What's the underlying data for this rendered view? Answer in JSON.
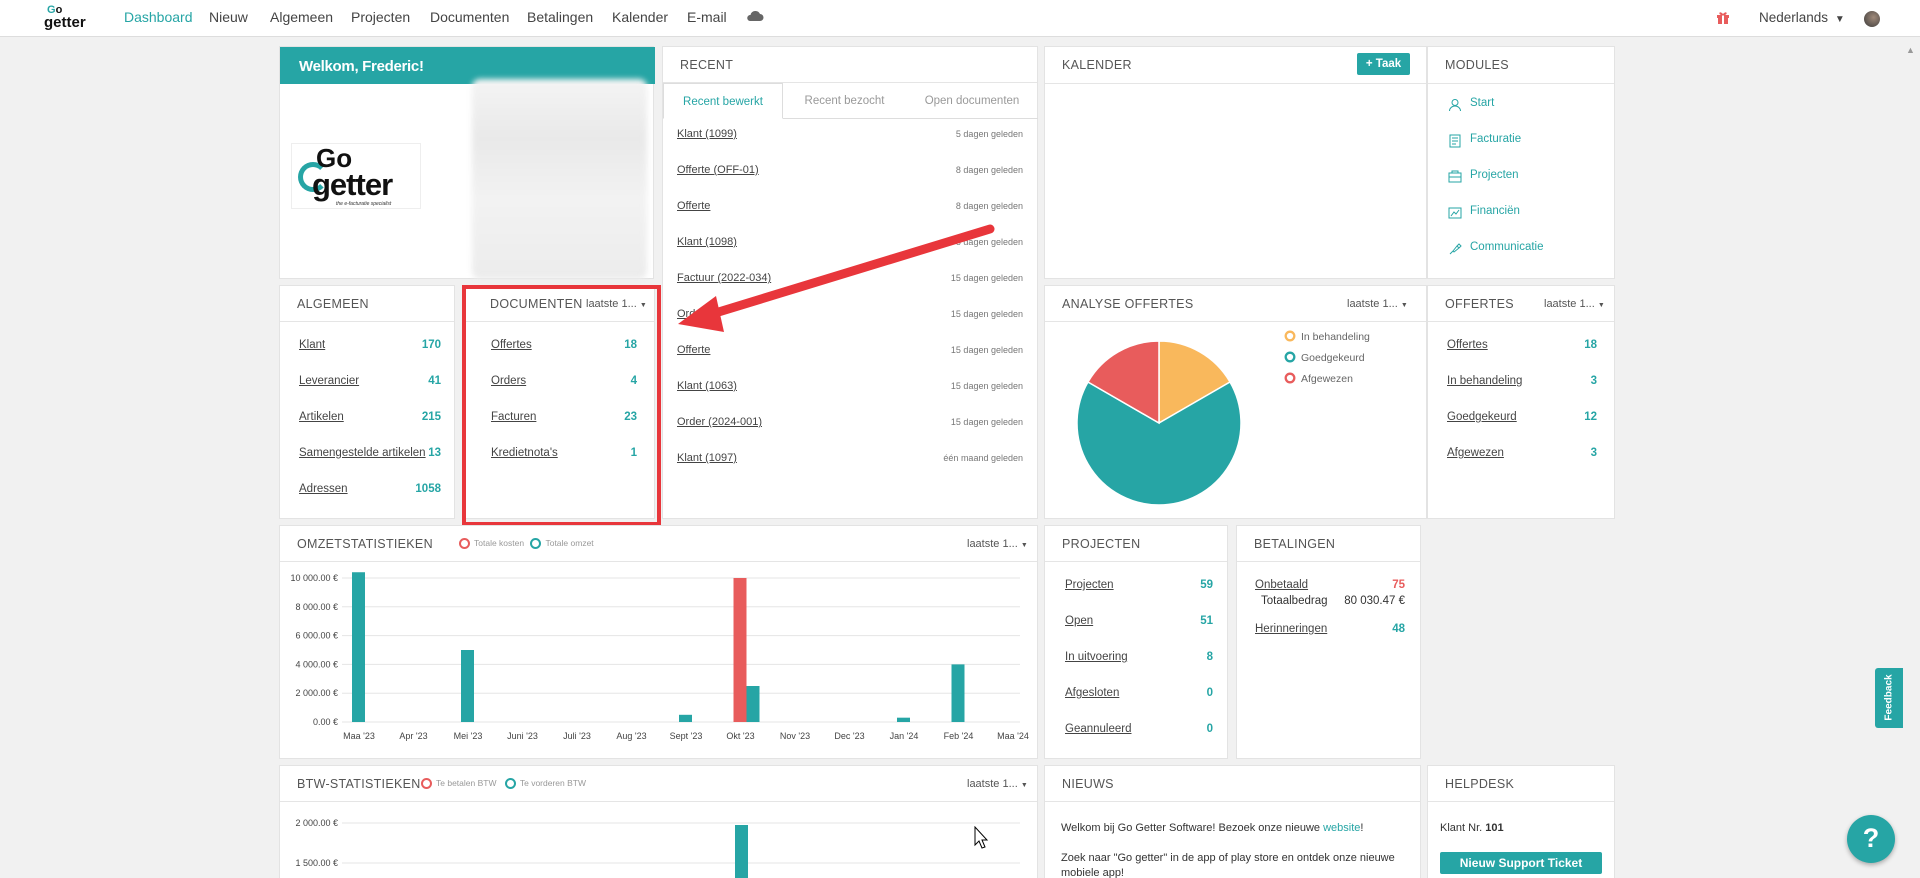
{
  "nav": {
    "items": [
      "Dashboard",
      "Nieuw",
      "Algemeen",
      "Projecten",
      "Documenten",
      "Betalingen",
      "Kalender",
      "E-mail"
    ],
    "language": "Nederlands"
  },
  "welcome": {
    "title": "Welkom, Frederic!",
    "logo_top": "Go",
    "logo_main": "getter",
    "logo_tagline": "the e-facturatie specialist"
  },
  "recent": {
    "title": "RECENT",
    "tabs": [
      "Recent bewerkt",
      "Recent bezocht",
      "Open documenten"
    ],
    "items": [
      {
        "label": "Klant (1099)",
        "time": "5 dagen geleden"
      },
      {
        "label": "Offerte (OFF-01)",
        "time": "8 dagen geleden"
      },
      {
        "label": "Offerte",
        "time": "8 dagen geleden"
      },
      {
        "label": "Klant (1098)",
        "time": "8 dagen geleden"
      },
      {
        "label": "Factuur (2022-034)",
        "time": "15 dagen geleden"
      },
      {
        "label": "Order",
        "time": "15 dagen geleden"
      },
      {
        "label": "Offerte",
        "time": "15 dagen geleden"
      },
      {
        "label": "Klant (1063)",
        "time": "15 dagen geleden"
      },
      {
        "label": "Order (2024-001)",
        "time": "15 dagen geleden"
      },
      {
        "label": "Klant (1097)",
        "time": "één maand geleden"
      }
    ]
  },
  "calendar": {
    "title": "KALENDER",
    "add_label": "+ Taak"
  },
  "modules": {
    "title": "MODULES",
    "items": [
      {
        "label": "Start",
        "icon": "user-icon"
      },
      {
        "label": "Facturatie",
        "icon": "invoice-icon"
      },
      {
        "label": "Projecten",
        "icon": "projects-icon"
      },
      {
        "label": "Financiën",
        "icon": "finance-icon"
      },
      {
        "label": "Communicatie",
        "icon": "communication-icon"
      }
    ]
  },
  "algemeen": {
    "title": "ALGEMEEN",
    "rows": [
      {
        "label": "Klant",
        "value": "170"
      },
      {
        "label": "Leverancier",
        "value": "41"
      },
      {
        "label": "Artikelen",
        "value": "215"
      },
      {
        "label": "Samengestelde artikelen",
        "value": "13"
      },
      {
        "label": "Adressen",
        "value": "1058"
      }
    ]
  },
  "documenten": {
    "title": "DOCUMENTEN",
    "filter": "laatste 1...",
    "rows": [
      {
        "label": "Offertes",
        "value": "18"
      },
      {
        "label": "Orders",
        "value": "4"
      },
      {
        "label": "Facturen",
        "value": "23"
      },
      {
        "label": "Kredietnota's",
        "value": "1"
      }
    ]
  },
  "analyse": {
    "title": "ANALYSE OFFERTES",
    "filter": "laatste 1..."
  },
  "offertes": {
    "title": "OFFERTES",
    "filter": "laatste 1...",
    "rows": [
      {
        "label": "Offertes",
        "value": "18"
      },
      {
        "label": "In behandeling",
        "value": "3"
      },
      {
        "label": "Goedgekeurd",
        "value": "12"
      },
      {
        "label": "Afgewezen",
        "value": "3"
      }
    ]
  },
  "omzet": {
    "title": "OMZETSTATISTIEKEN",
    "filter": "laatste 1..."
  },
  "projecten": {
    "title": "PROJECTEN",
    "rows": [
      {
        "label": "Projecten",
        "value": "59"
      },
      {
        "label": "Open",
        "value": "51"
      },
      {
        "label": "In uitvoering",
        "value": "8"
      },
      {
        "label": "Afgesloten",
        "value": "0"
      },
      {
        "label": "Geannuleerd",
        "value": "0"
      }
    ]
  },
  "betalingen": {
    "title": "BETALINGEN",
    "onbetaald_label": "Onbetaald",
    "onbetaald_value": "75",
    "totaal_label": "Totaalbedrag",
    "totaal_value": "80 030.47 €",
    "herinneringen_label": "Herinneringen",
    "herinneringen_value": "48"
  },
  "btw": {
    "title": "BTW-STATISTIEKEN",
    "filter": "laatste 1..."
  },
  "nieuws": {
    "title": "NIEUWS",
    "text1": "Welkom bij Go Getter Software! Bezoek onze nieuwe ",
    "link": "website",
    "text1_end": "!",
    "text2": "Zoek naar \"Go getter\" in de app of play store en ontdek onze nieuwe mobiele app!"
  },
  "helpdesk": {
    "title": "HELPDESK",
    "klant_label": "Klant Nr.",
    "klant_value": "101",
    "button": "Nieuw Support Ticket"
  },
  "feedback": "Feedback",
  "help": "?",
  "colors": {
    "accent": "#26a5a5",
    "red": "#e85c5c",
    "orange": "#f9b85c",
    "annotation": "#e8363b"
  },
  "chart_data": [
    {
      "type": "bar",
      "title": "OMZETSTATISTIEKEN",
      "categories": [
        "Maa '23",
        "Apr '23",
        "Mei '23",
        "Juni '23",
        "Juli '23",
        "Aug '23",
        "Sept '23",
        "Okt '23",
        "Nov '23",
        "Dec '23",
        "Jan '24",
        "Feb '24",
        "Maa '24"
      ],
      "yticks": [
        "10 000.00 €",
        "8 000.00 €",
        "6 000.00 €",
        "4 000.00 €",
        "2 000.00 €",
        "0.00 €"
      ],
      "ylim": [
        0,
        10000
      ],
      "series": [
        {
          "name": "Totale kosten",
          "color": "#e85c5c",
          "values": [
            0,
            0,
            0,
            0,
            0,
            0,
            0,
            10000,
            0,
            0,
            0,
            0,
            0
          ]
        },
        {
          "name": "Totale omzet",
          "color": "#26a5a5",
          "values": [
            10400,
            0,
            5000,
            0,
            0,
            0,
            500,
            2500,
            0,
            0,
            300,
            4000,
            0
          ]
        }
      ]
    },
    {
      "type": "bar",
      "title": "BTW-STATISTIEKEN",
      "yticks": [
        "2 000.00 €",
        "1 500.00 €"
      ],
      "ylim": [
        0,
        2000
      ],
      "series": [
        {
          "name": "Te betalen BTW",
          "color": "#e85c5c"
        },
        {
          "name": "Te vorderen BTW",
          "color": "#26a5a5"
        }
      ]
    },
    {
      "type": "pie",
      "title": "ANALYSE OFFERTES",
      "labels": [
        "In behandeling",
        "Goedgekeurd",
        "Afgewezen"
      ],
      "values": [
        3,
        12,
        3
      ],
      "colors": [
        "#f9b85c",
        "#26a5a5",
        "#e85c5c"
      ]
    }
  ]
}
